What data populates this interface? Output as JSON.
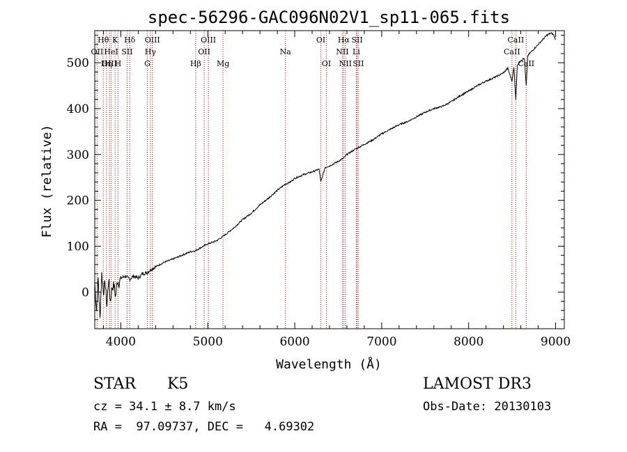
{
  "chart_data": {
    "type": "line",
    "title": "spec-56296-GAC096N02V1_sp11-065.fits",
    "xlabel": "Wavelength (Å)",
    "ylabel": "Flux (relative)",
    "xlim": [
      3700,
      9100
    ],
    "ylim": [
      -80,
      570
    ],
    "x_ticks": [
      4000,
      5000,
      6000,
      7000,
      8000,
      9000
    ],
    "y_ticks": [
      0,
      100,
      200,
      300,
      400,
      500
    ],
    "grid": false,
    "series": [
      {
        "name": "flux",
        "x": [
          3700,
          3720,
          3740,
          3760,
          3780,
          3800,
          3820,
          3840,
          3860,
          3880,
          3900,
          3920,
          3940,
          3960,
          3980,
          4000,
          4050,
          4100,
          4150,
          4200,
          4250,
          4300,
          4350,
          4400,
          4500,
          4600,
          4700,
          4800,
          4860,
          4900,
          4950,
          5000,
          5050,
          5100,
          5150,
          5200,
          5300,
          5400,
          5500,
          5600,
          5700,
          5800,
          5890,
          5950,
          6000,
          6100,
          6200,
          6280,
          6300,
          6350,
          6400,
          6500,
          6563,
          6600,
          6700,
          6800,
          6900,
          7000,
          7100,
          7200,
          7300,
          7400,
          7500,
          7600,
          7700,
          7750,
          7800,
          7900,
          8000,
          8100,
          8200,
          8300,
          8400,
          8450,
          8498,
          8520,
          8542,
          8560,
          8600,
          8640,
          8662,
          8680,
          8700,
          8750,
          8800,
          8850,
          8900,
          8950,
          8980,
          9000
        ],
        "y": [
          20,
          -40,
          30,
          -60,
          40,
          0,
          20,
          -30,
          30,
          -20,
          10,
          15,
          -10,
          25,
          20,
          30,
          35,
          28,
          35,
          30,
          40,
          42,
          50,
          55,
          65,
          72,
          80,
          88,
          90,
          95,
          100,
          105,
          108,
          112,
          118,
          125,
          140,
          158,
          172,
          190,
          205,
          222,
          235,
          240,
          248,
          256,
          262,
          268,
          240,
          272,
          275,
          285,
          292,
          300,
          312,
          322,
          332,
          345,
          355,
          365,
          372,
          382,
          392,
          400,
          405,
          410,
          415,
          428,
          438,
          450,
          460,
          468,
          478,
          488,
          460,
          490,
          420,
          495,
          505,
          510,
          450,
          515,
          520,
          530,
          540,
          550,
          560,
          565,
          560,
          550
        ]
      }
    ],
    "spectral_lines": [
      {
        "label": "Hθ",
        "x": 3798,
        "row": 0
      },
      {
        "label": "OII",
        "x": 3727,
        "row": 1
      },
      {
        "label": "OIII",
        "x": 3869,
        "row": 2
      },
      {
        "label": "Hη",
        "x": 3835,
        "row": 2
      },
      {
        "label": "K",
        "x": 3934,
        "row": 0
      },
      {
        "label": "HeI",
        "x": 3889,
        "row": 1
      },
      {
        "label": "SII",
        "x": 4072,
        "row": 1
      },
      {
        "label": "H",
        "x": 3968,
        "row": 2
      },
      {
        "label": "Hδ",
        "x": 4102,
        "row": 0
      },
      {
        "label": "OIII",
        "x": 4363,
        "row": 0
      },
      {
        "label": "Hγ",
        "x": 4340,
        "row": 1
      },
      {
        "label": "G",
        "x": 4305,
        "row": 2
      },
      {
        "label": "OIII",
        "x": 5007,
        "row": 0
      },
      {
        "label": "OII",
        "x": 4959,
        "row": 1
      },
      {
        "label": "Hβ",
        "x": 4861,
        "row": 2
      },
      {
        "label": "Mg",
        "x": 5175,
        "row": 2
      },
      {
        "label": "Na",
        "x": 5893,
        "row": 1
      },
      {
        "label": "OI",
        "x": 6300,
        "row": 0
      },
      {
        "label": "OI",
        "x": 6364,
        "row": 2
      },
      {
        "label": "Hα",
        "x": 6563,
        "row": 0
      },
      {
        "label": "SII",
        "x": 6717,
        "row": 0
      },
      {
        "label": "NII",
        "x": 6548,
        "row": 1
      },
      {
        "label": "Li",
        "x": 6708,
        "row": 1
      },
      {
        "label": "NII",
        "x": 6583,
        "row": 2
      },
      {
        "label": "SII",
        "x": 6731,
        "row": 2
      },
      {
        "label": "CaII",
        "x": 8542,
        "row": 0
      },
      {
        "label": "CaII",
        "x": 8498,
        "row": 1
      },
      {
        "label": "CaII",
        "x": 8662,
        "row": 2
      }
    ],
    "line_color": "#000000",
    "marker_color": "#cc0000"
  },
  "info": {
    "object_class": "STAR",
    "subclass": "K5",
    "survey": "LAMOST DR3",
    "redshift": "cz = 34.1 ± 8.7 km/s",
    "obs_date": "Obs-Date: 20130103",
    "coords": "RA =  97.09737, DEC =   4.69302"
  }
}
